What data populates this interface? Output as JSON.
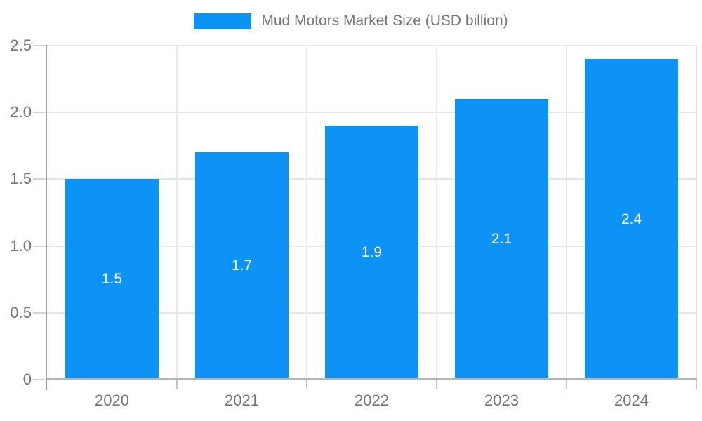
{
  "legend": {
    "label": "Mud Motors Market Size (USD billion)"
  },
  "chart_data": {
    "type": "bar",
    "title": "Mud Motors Market Size (USD billion)",
    "categories": [
      "2020",
      "2021",
      "2022",
      "2023",
      "2024"
    ],
    "values": [
      1.5,
      1.7,
      1.9,
      2.1,
      2.4
    ],
    "bar_labels": [
      "1.5",
      "1.7",
      "1.9",
      "2.1",
      "2.4"
    ],
    "series": [
      {
        "name": "Mud Motors Market Size (USD billion)",
        "values": [
          1.5,
          1.7,
          1.9,
          2.1,
          2.4
        ]
      }
    ],
    "xlabel": "",
    "ylabel": "",
    "ylim": [
      0,
      2.5
    ],
    "yticks": [
      0,
      0.5,
      1.0,
      1.5,
      2.0,
      2.5
    ],
    "ytick_labels": [
      "0",
      "0.5",
      "1.0",
      "1.5",
      "2.0",
      "2.5"
    ],
    "grid": true,
    "legend_position": "top",
    "colors": {
      "bar": "#0d92f5",
      "bar_label": "#ffffff",
      "axis_text": "#757575",
      "gridline": "#e6e6e6",
      "y_axis_line": "#9e9e9e",
      "x_axis_line": "#b5b5b5"
    }
  }
}
